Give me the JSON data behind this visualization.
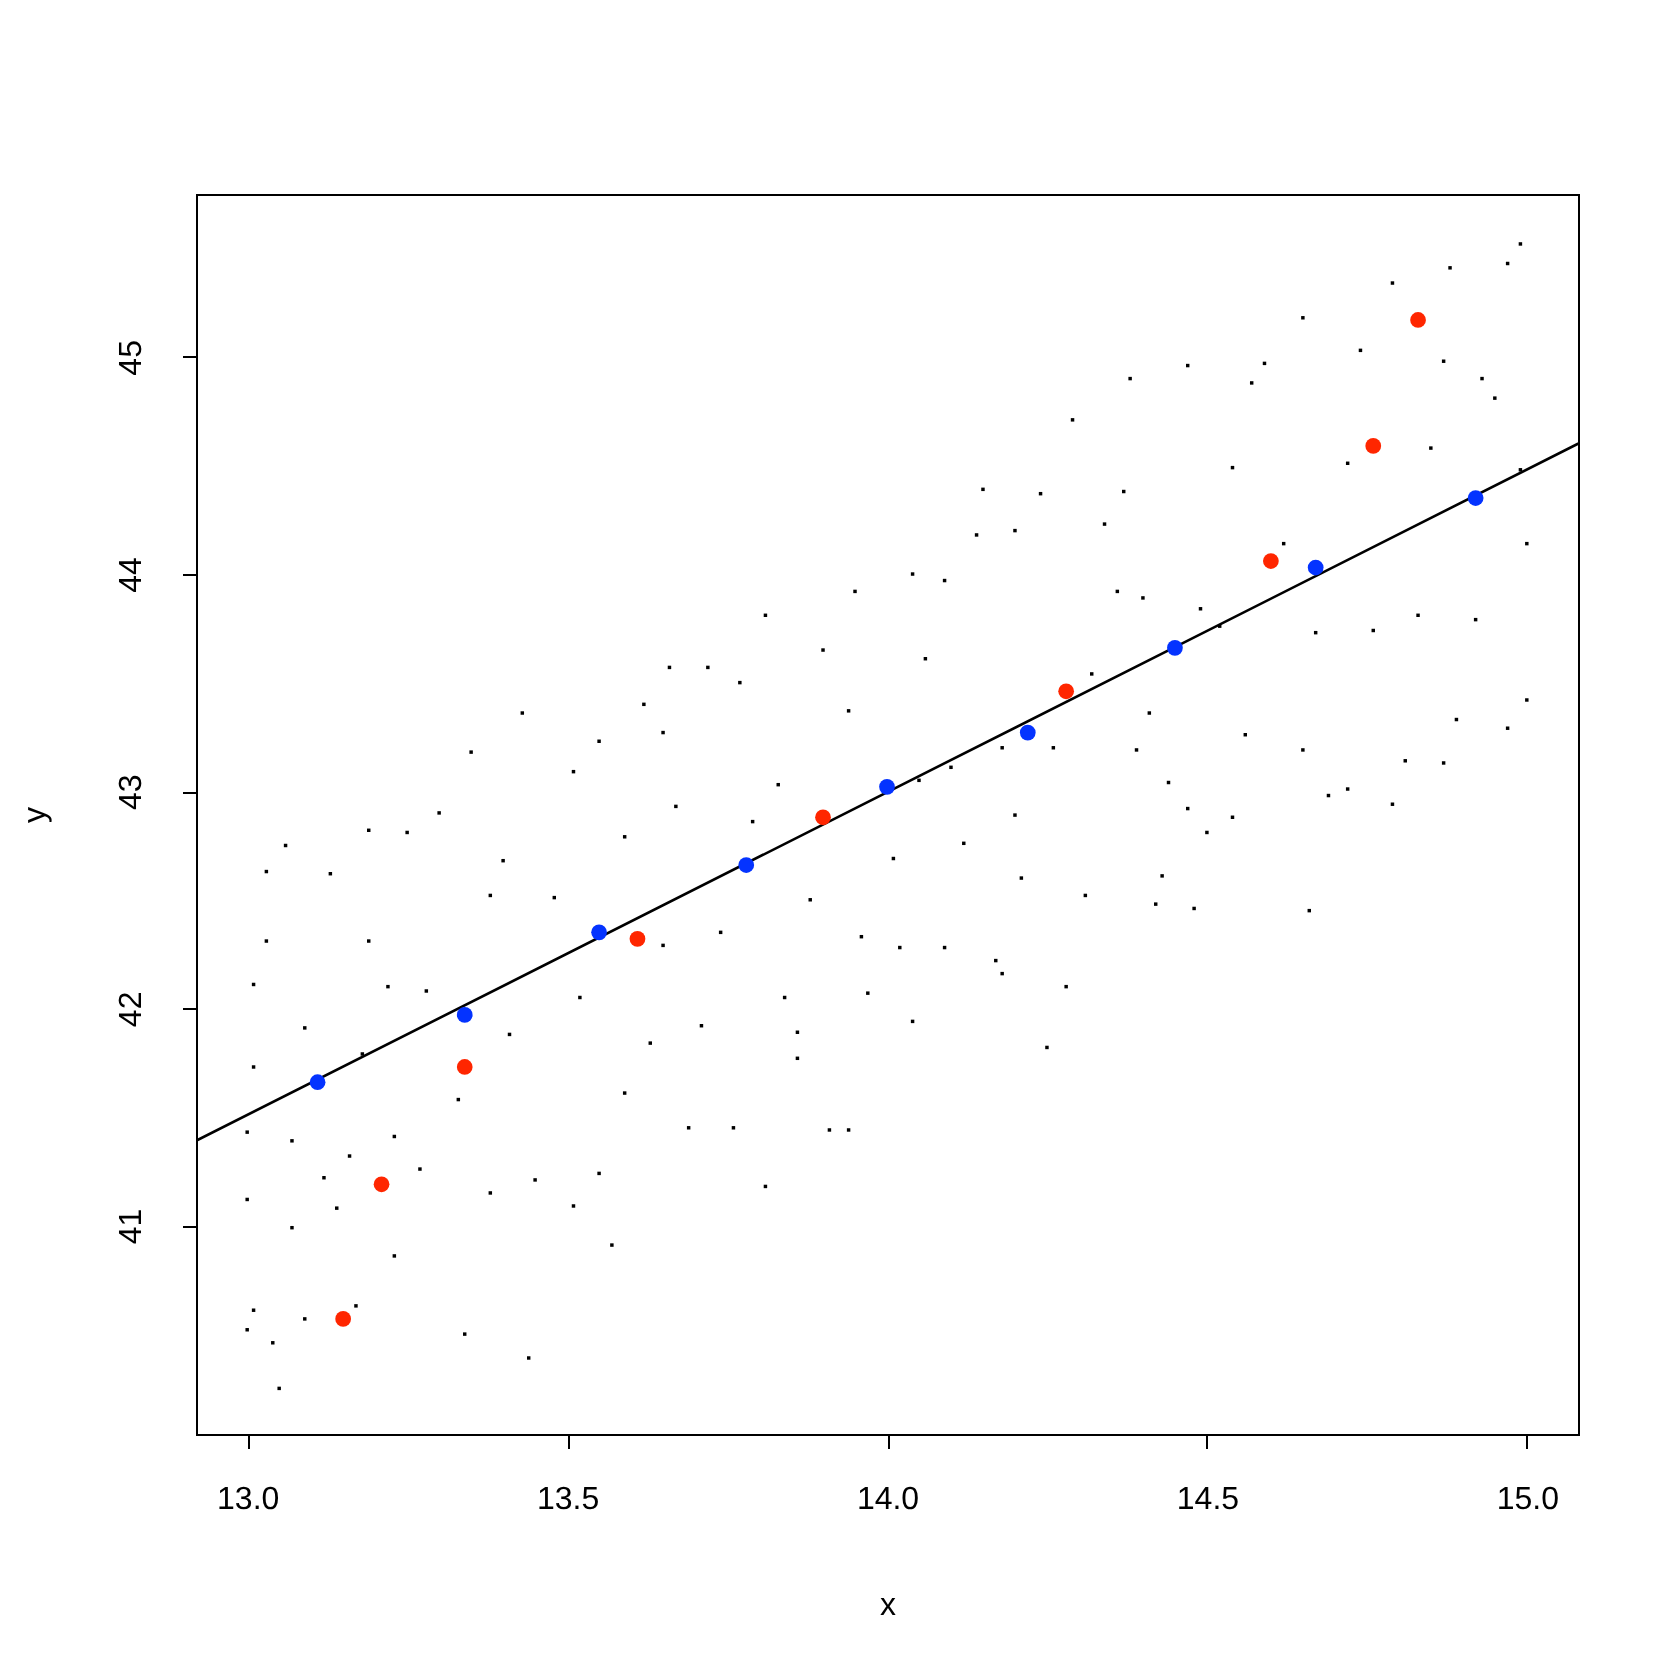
{
  "chart_data": {
    "type": "scatter",
    "xlabel": "x",
    "ylabel": "y",
    "xlim": [
      12.92,
      15.08
    ],
    "ylim": [
      40.04,
      45.75
    ],
    "xticks": [
      {
        "value": 13,
        "label": "13.0"
      },
      13.5,
      {
        "value": 14,
        "label": "14.0"
      },
      14.5,
      {
        "value": 15,
        "label": "15.0"
      }
    ],
    "yticks": [
      41,
      42,
      43,
      44,
      45
    ],
    "series": [
      {
        "marker": "square",
        "color": "#000000",
        "x": [
          13.0,
          13.0,
          13.01,
          13.01,
          13.01,
          13.0,
          13.05,
          13.04,
          13.03,
          13.06,
          13.03,
          13.09,
          13.07,
          13.07,
          13.09,
          13.12,
          13.13,
          13.14,
          13.16,
          13.17,
          13.18,
          13.19,
          13.19,
          13.22,
          13.23,
          13.23,
          13.25,
          13.27,
          13.28,
          13.3,
          13.33,
          13.34,
          13.35,
          13.38,
          13.38,
          13.4,
          13.41,
          13.43,
          13.44,
          13.45,
          13.48,
          13.51,
          13.51,
          13.52,
          13.55,
          13.57,
          13.55,
          13.59,
          13.62,
          13.63,
          13.59,
          13.66,
          13.65,
          13.65,
          13.67,
          13.69,
          13.71,
          13.72,
          13.76,
          13.74,
          13.77,
          13.79,
          13.81,
          13.81,
          13.83,
          13.84,
          13.86,
          13.86,
          13.88,
          13.9,
          13.91,
          13.94,
          13.94,
          13.95,
          13.96,
          13.97,
          14.01,
          14.02,
          14.04,
          14.04,
          14.05,
          14.06,
          14.09,
          14.09,
          14.1,
          14.12,
          14.14,
          14.15,
          14.17,
          14.18,
          14.18,
          14.2,
          14.2,
          14.21,
          14.24,
          14.25,
          14.26,
          14.28,
          14.29,
          14.31,
          14.32,
          14.34,
          14.36,
          14.37,
          14.38,
          14.39,
          14.4,
          14.41,
          14.42,
          14.43,
          14.44,
          14.47,
          14.47,
          14.48,
          14.49,
          14.5,
          14.52,
          14.54,
          14.54,
          14.56,
          14.57,
          14.59,
          14.62,
          14.65,
          14.65,
          14.66,
          14.67,
          14.69,
          14.72,
          14.72,
          14.74,
          14.76,
          14.79,
          14.79,
          14.81,
          14.83,
          14.85,
          14.87,
          14.87,
          14.88,
          14.89,
          14.92,
          14.93,
          14.95,
          14.97,
          14.97,
          14.99,
          14.99,
          15.0,
          15.0
        ],
        "values": [
          41.43,
          41.12,
          41.73,
          42.11,
          40.61,
          40.52,
          40.25,
          40.46,
          42.63,
          42.75,
          42.31,
          41.91,
          41.39,
          40.99,
          40.57,
          41.22,
          42.62,
          41.08,
          41.32,
          40.63,
          41.79,
          42.82,
          42.31,
          42.1,
          40.86,
          41.41,
          42.81,
          41.26,
          42.08,
          42.9,
          41.58,
          40.5,
          43.18,
          41.15,
          42.52,
          42.68,
          41.88,
          43.36,
          40.39,
          41.21,
          42.51,
          41.09,
          43.09,
          42.05,
          43.23,
          40.91,
          41.24,
          42.79,
          43.4,
          41.84,
          41.61,
          43.57,
          43.27,
          42.29,
          42.93,
          41.45,
          41.92,
          43.57,
          41.45,
          42.35,
          43.5,
          42.86,
          43.81,
          41.18,
          43.03,
          42.05,
          41.89,
          41.77,
          42.5,
          43.65,
          41.44,
          41.44,
          43.37,
          43.92,
          42.33,
          42.07,
          42.69,
          42.28,
          44.0,
          41.94,
          43.05,
          43.61,
          43.97,
          42.28,
          43.11,
          42.76,
          44.18,
          44.39,
          42.22,
          42.16,
          43.2,
          44.2,
          42.89,
          42.6,
          44.37,
          41.82,
          43.2,
          42.1,
          44.71,
          42.52,
          43.54,
          44.23,
          43.92,
          44.38,
          44.9,
          43.19,
          43.89,
          43.36,
          42.48,
          42.61,
          43.04,
          44.96,
          42.92,
          42.46,
          43.84,
          42.81,
          43.76,
          44.49,
          42.88,
          43.26,
          44.88,
          44.97,
          44.14,
          45.18,
          43.19,
          42.45,
          43.73,
          42.98,
          43.01,
          44.51,
          45.03,
          43.74,
          45.34,
          42.94,
          43.14,
          43.81,
          44.58,
          44.98,
          43.13,
          45.41,
          43.33,
          43.79,
          44.9,
          44.81,
          45.43,
          43.29,
          44.48,
          45.52,
          44.14,
          43.42
        ]
      },
      {
        "type": "line",
        "marker": "none",
        "color": "#000000",
        "x": [
          12.92,
          15.08
        ],
        "values": [
          41.39,
          44.6
        ]
      },
      {
        "marker": "circle",
        "color": "#ff2600",
        "x": [
          13.15,
          13.21,
          13.34,
          13.61,
          13.9,
          14.28,
          14.6,
          14.76,
          14.83
        ],
        "values": [
          40.57,
          41.19,
          41.73,
          42.32,
          42.88,
          43.46,
          44.06,
          44.59,
          45.17
        ]
      },
      {
        "marker": "circle",
        "color": "#0433ff",
        "x": [
          13.11,
          13.34,
          13.55,
          13.78,
          14.0,
          14.22,
          14.45,
          14.67,
          14.92
        ],
        "values": [
          41.66,
          41.97,
          42.35,
          42.66,
          43.02,
          43.27,
          43.66,
          44.03,
          44.35
        ]
      }
    ]
  }
}
